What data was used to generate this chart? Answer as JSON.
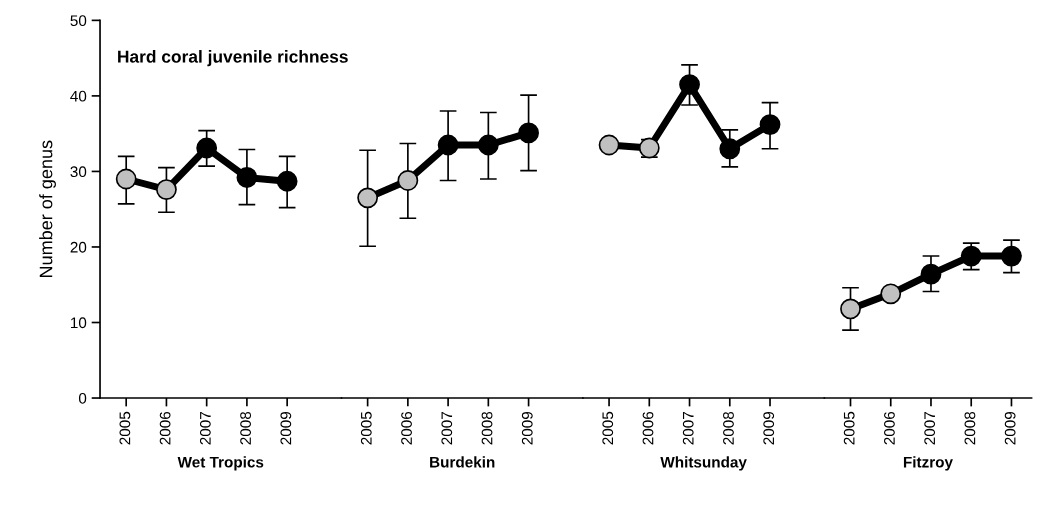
{
  "chart_data": [
    {
      "type": "line",
      "title": "Hard coral juvenile richness",
      "ylabel": "Number of genus",
      "xlabel": "Wet Tropics",
      "categories": [
        "2005",
        "2006",
        "2007",
        "2008",
        "2009"
      ],
      "ylim": [
        0,
        50
      ],
      "yticks": [
        0,
        10,
        20,
        30,
        40,
        50
      ],
      "marker": "circle",
      "line_style": "solid",
      "series": [
        {
          "color": "#000000",
          "colors": [
            "#c0c0c0",
            "#c0c0c0",
            "#000000",
            "#000000",
            "#000000"
          ],
          "values": [
            29.0,
            27.6,
            33.1,
            29.2,
            28.7
          ],
          "errors": [
            [
              25.7,
              32.0
            ],
            [
              24.6,
              30.5
            ],
            [
              30.7,
              35.4
            ],
            [
              25.6,
              32.9
            ],
            [
              25.2,
              32.0
            ]
          ]
        }
      ]
    },
    {
      "type": "line",
      "xlabel": "Burdekin",
      "categories": [
        "2005",
        "2006",
        "2007",
        "2008",
        "2009"
      ],
      "ylim": [
        0,
        50
      ],
      "tick_labels": "x",
      "marker": "circle",
      "line_style": "solid",
      "series": [
        {
          "color": "#000000",
          "colors": [
            "#c0c0c0",
            "#c0c0c0",
            "#000000",
            "#000000",
            "#000000"
          ],
          "values": [
            26.5,
            28.8,
            33.5,
            33.5,
            35.1
          ],
          "errors": [
            [
              20.1,
              32.8
            ],
            [
              23.8,
              33.7
            ],
            [
              28.8,
              38.0
            ],
            [
              29.0,
              37.8
            ],
            [
              30.1,
              40.1
            ]
          ]
        }
      ]
    },
    {
      "type": "line",
      "xlabel": "Whitsunday",
      "categories": [
        "2005",
        "2006",
        "2007",
        "2008",
        "2009"
      ],
      "ylim": [
        0,
        50
      ],
      "tick_labels": "x",
      "marker": "circle",
      "line_style": "solid",
      "series": [
        {
          "color": "#000000",
          "colors": [
            "#c0c0c0",
            "#c0c0c0",
            "#000000",
            "#000000",
            "#000000"
          ],
          "values": [
            33.5,
            33.1,
            41.5,
            33.0,
            36.2
          ],
          "errors": [
            null,
            [
              31.9,
              34.2
            ],
            [
              38.8,
              44.1
            ],
            [
              30.6,
              35.5
            ],
            [
              33.0,
              39.1
            ]
          ]
        }
      ]
    },
    {
      "type": "line",
      "xlabel": "Fitzroy",
      "categories": [
        "2005",
        "2006",
        "2007",
        "2008",
        "2009"
      ],
      "ylim": [
        0,
        50
      ],
      "tick_labels": "x",
      "marker": "circle",
      "line_style": "solid",
      "series": [
        {
          "color": "#000000",
          "colors": [
            "#c0c0c0",
            "#c0c0c0",
            "#000000",
            "#000000",
            "#000000"
          ],
          "values": [
            11.8,
            13.8,
            16.4,
            18.8,
            18.8
          ],
          "errors": [
            [
              9.0,
              14.6
            ],
            null,
            [
              14.1,
              18.8
            ],
            [
              17.0,
              20.5
            ],
            [
              16.6,
              20.9
            ]
          ]
        }
      ]
    }
  ]
}
